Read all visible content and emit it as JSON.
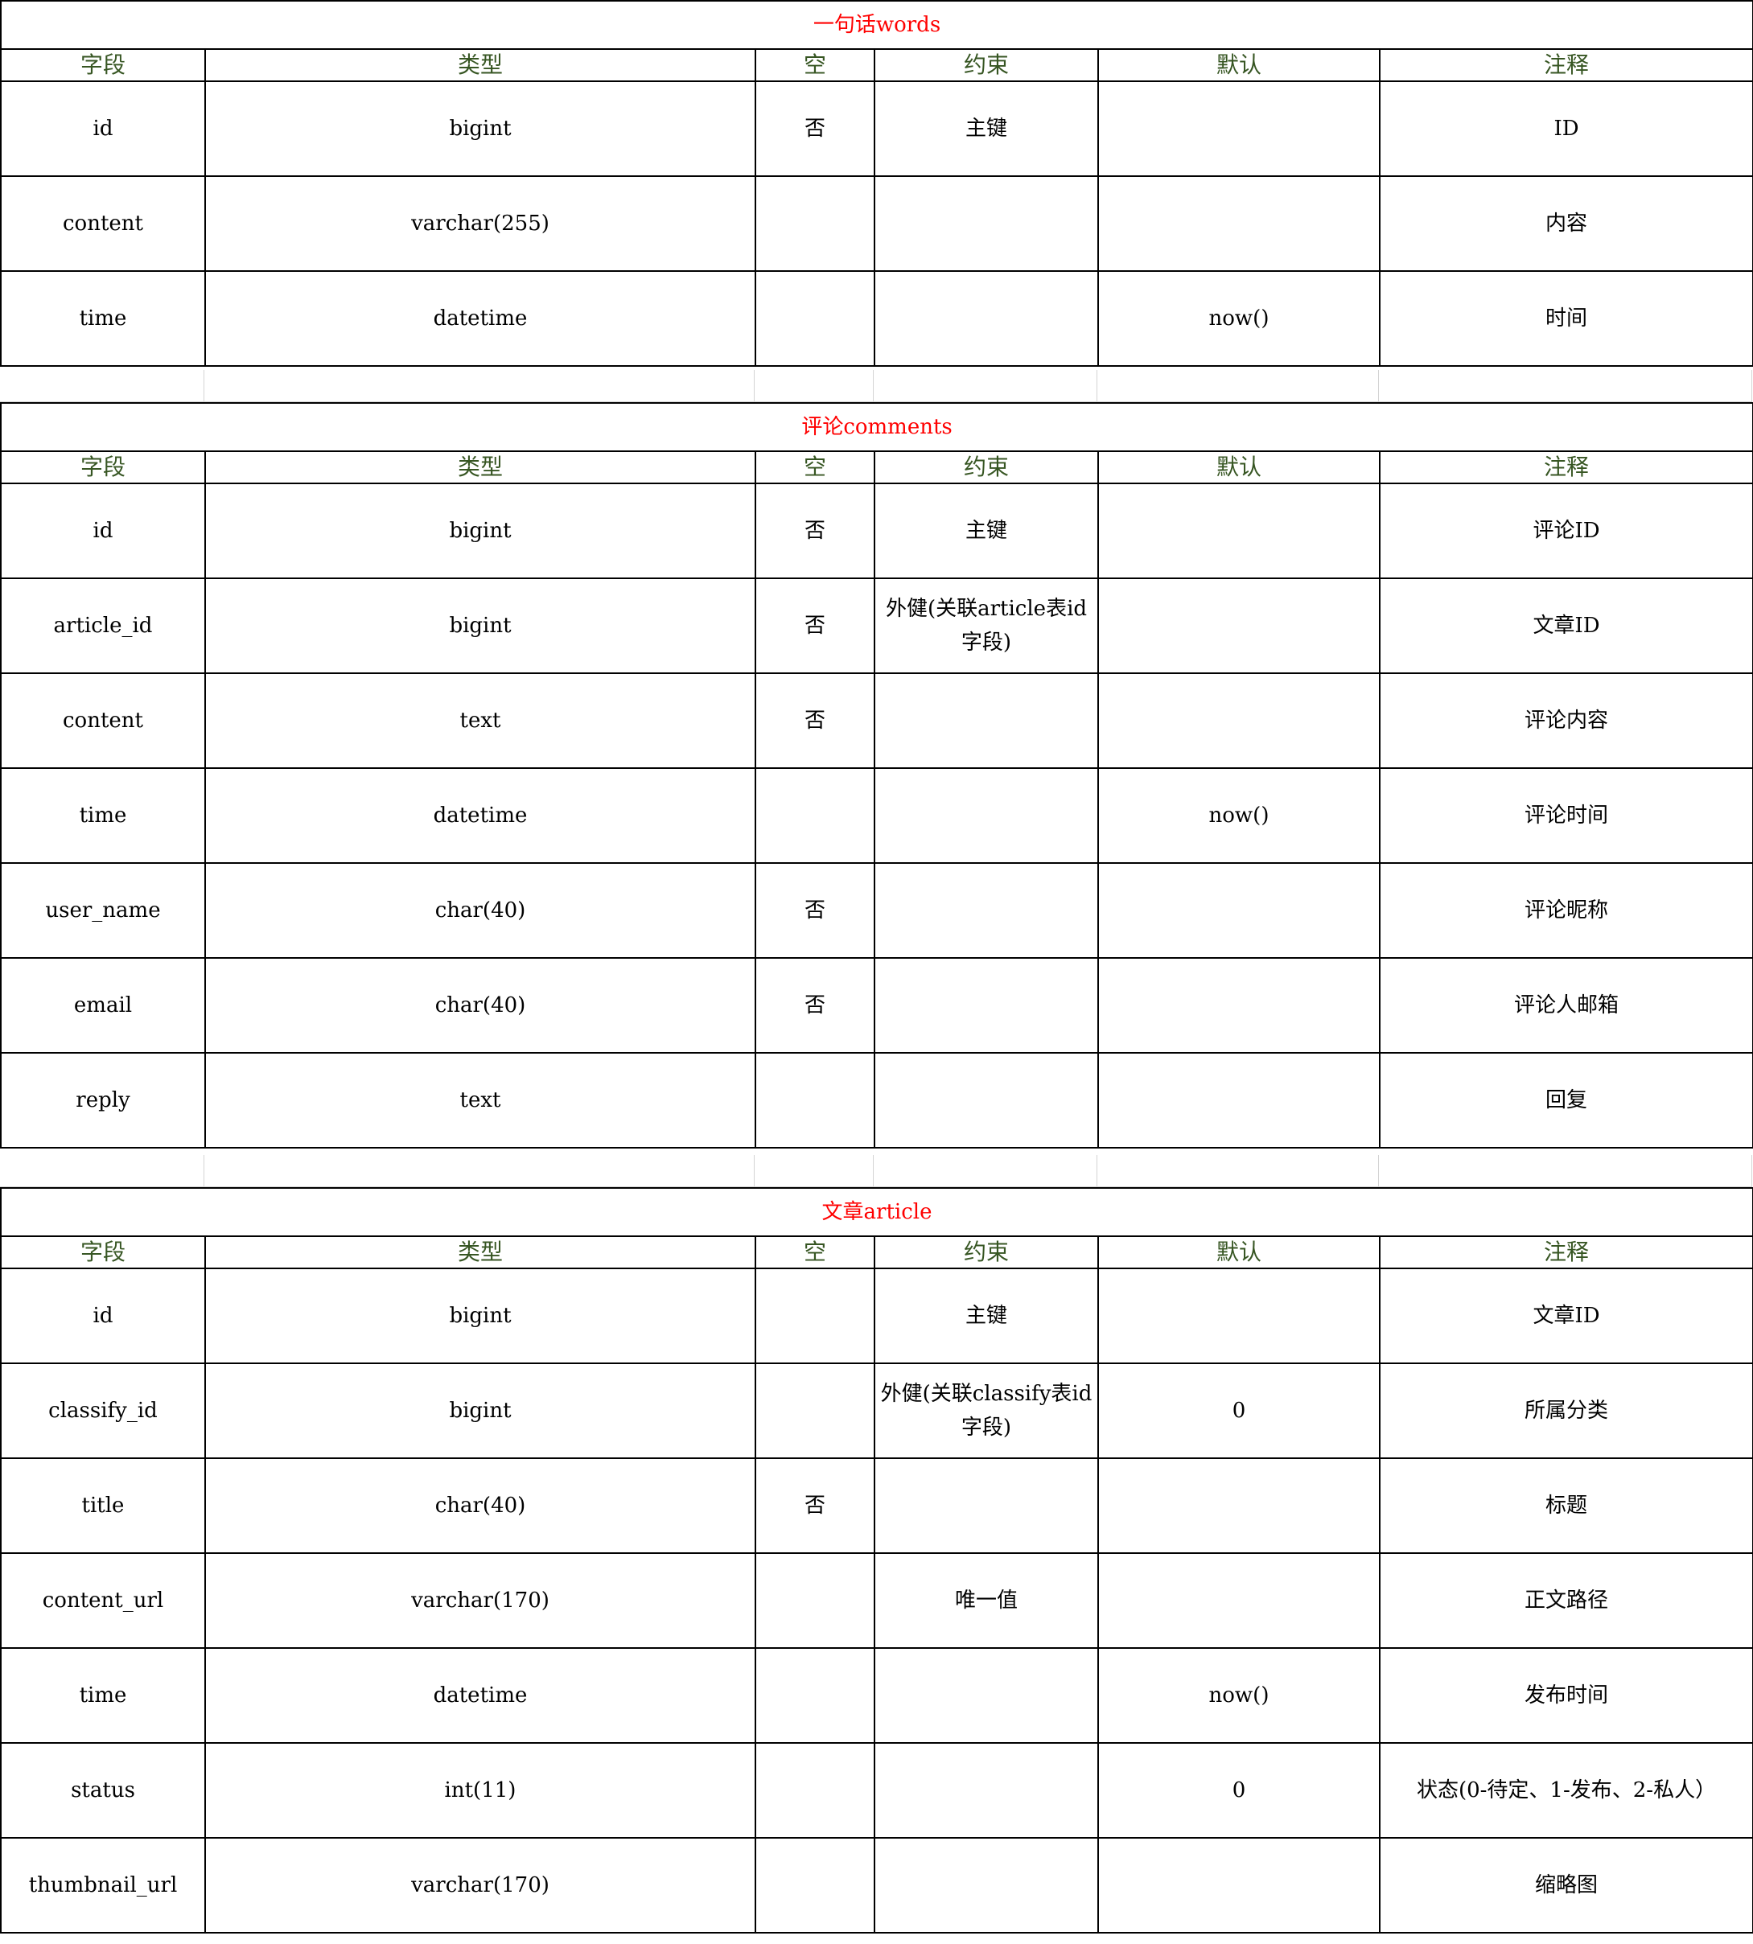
{
  "columns": [
    "字段",
    "类型",
    "空",
    "约束",
    "默认",
    "注释"
  ],
  "tables": [
    {
      "title": "一句话words",
      "rows": [
        [
          "id",
          "bigint",
          "否",
          "主键",
          "",
          "ID"
        ],
        [
          "content",
          "varchar(255)",
          "",
          "",
          "",
          "内容"
        ],
        [
          "time",
          "datetime",
          "",
          "",
          "now()",
          "时间"
        ]
      ]
    },
    {
      "title": "评论comments",
      "rows": [
        [
          "id",
          "bigint",
          "否",
          "主键",
          "",
          "评论ID"
        ],
        [
          "article_id",
          "bigint",
          "否",
          "外健(关联article表id字段)",
          "",
          "文章ID"
        ],
        [
          "content",
          "text",
          "否",
          "",
          "",
          "评论内容"
        ],
        [
          "time",
          "datetime",
          "",
          "",
          "now()",
          "评论时间"
        ],
        [
          "user_name",
          "char(40)",
          "否",
          "",
          "",
          "评论昵称"
        ],
        [
          "email",
          "char(40)",
          "否",
          "",
          "",
          "评论人邮箱"
        ],
        [
          "reply",
          "text",
          "",
          "",
          "",
          "回复"
        ]
      ]
    },
    {
      "title": "文章article",
      "rows": [
        [
          "id",
          "bigint",
          "",
          "主键",
          "",
          "文章ID"
        ],
        [
          "classify_id",
          "bigint",
          "",
          "外健(关联classify表id字段)",
          "0",
          "所属分类"
        ],
        [
          "title",
          "char(40)",
          "否",
          "",
          "",
          "标题"
        ],
        [
          "content_url",
          "varchar(170)",
          "",
          "唯一值",
          "",
          "正文路径"
        ],
        [
          "time",
          "datetime",
          "",
          "",
          "now()",
          "发布时间"
        ],
        [
          "status",
          "int(11)",
          "",
          "",
          "0",
          "状态(0-待定、1-发布、2-私人）"
        ],
        [
          "thumbnail_url",
          "varchar(170)",
          "",
          "",
          "",
          "缩略图"
        ]
      ]
    }
  ]
}
